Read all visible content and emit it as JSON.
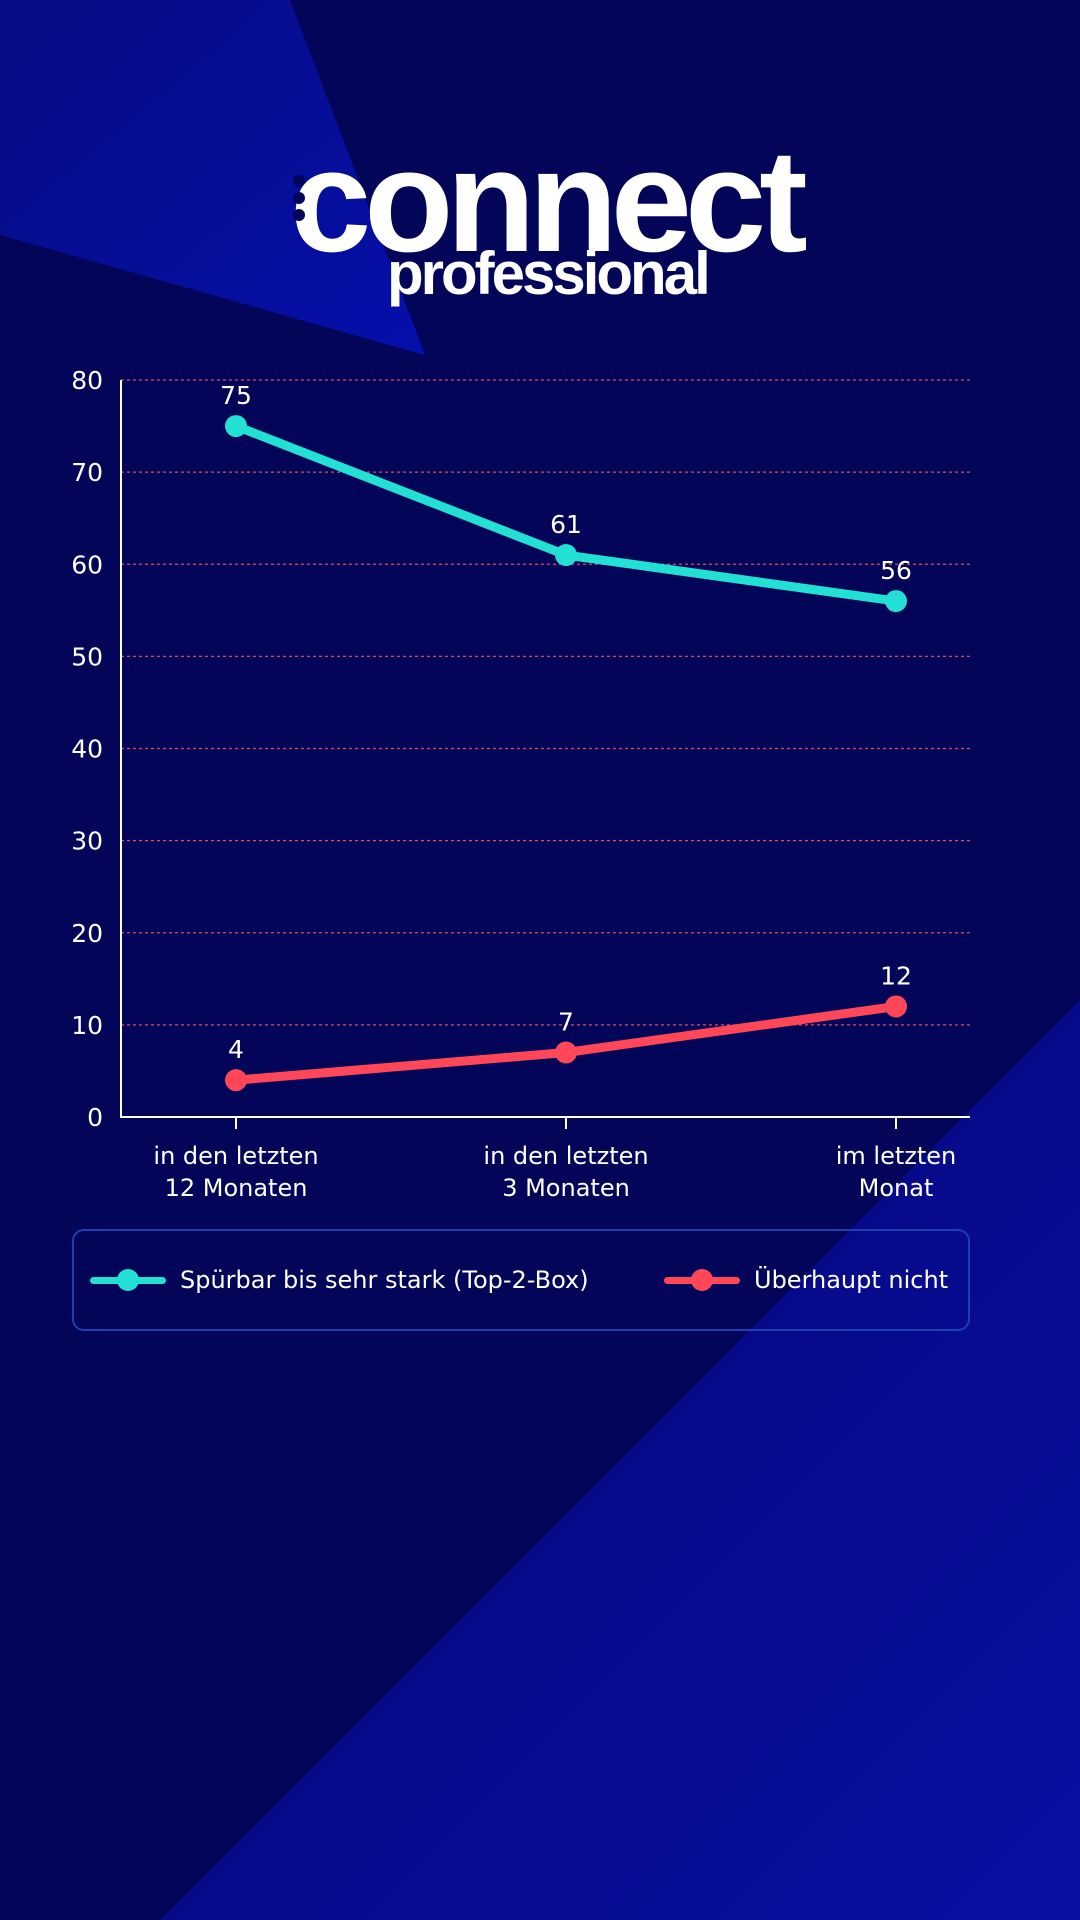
{
  "brand": {
    "logo_main": "connect",
    "logo_sub": "professional"
  },
  "colors": {
    "background": "#030558",
    "series_top2": "#22e0d4",
    "series_none": "#ff4757",
    "grid": "#ff5a5a",
    "axis": "#ffffff",
    "legend_border": "#1f3fb0"
  },
  "chart_data": {
    "type": "line",
    "title": "",
    "xlabel": "",
    "ylabel": "",
    "categories": [
      [
        "in den letzten",
        "12 Monaten"
      ],
      [
        "in den letzten",
        "3 Monaten"
      ],
      [
        "im letzten",
        "Monat"
      ]
    ],
    "ylim": [
      0,
      80
    ],
    "yticks": [
      0,
      10,
      20,
      30,
      40,
      50,
      60,
      70,
      80
    ],
    "grid": true,
    "legend_position": "bottom",
    "series": [
      {
        "name": "Spürbar bis sehr stark (Top-2-Box)",
        "color": "#22e0d4",
        "values": [
          75,
          61,
          56
        ]
      },
      {
        "name": "Überhaupt nicht",
        "color": "#ff4757",
        "values": [
          4,
          7,
          12
        ]
      }
    ]
  },
  "legend": {
    "items": [
      {
        "label": "Spürbar bis sehr stark (Top-2-Box)",
        "color": "#22e0d4"
      },
      {
        "label": "Überhaupt nicht",
        "color": "#ff4757"
      }
    ]
  }
}
